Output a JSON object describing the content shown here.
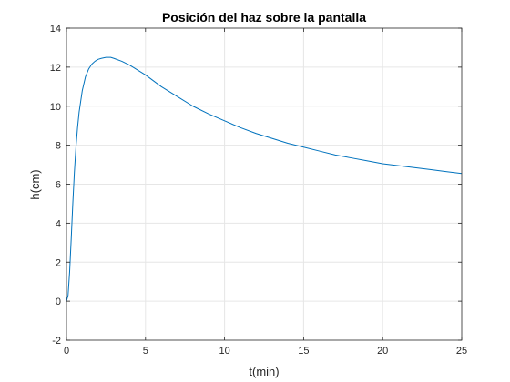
{
  "chart_data": {
    "type": "line",
    "title": "Posición del haz sobre la pantalla",
    "xlabel": "t(min)",
    "ylabel": "h(cm)",
    "xlim": [
      0,
      25
    ],
    "ylim": [
      -2,
      14
    ],
    "xticks": [
      0,
      5,
      10,
      15,
      20,
      25
    ],
    "yticks": [
      -2,
      0,
      2,
      4,
      6,
      8,
      10,
      12,
      14
    ],
    "grid": true,
    "series_color": "#0072BD",
    "series": [
      {
        "x": [
          0,
          0.1,
          0.2,
          0.3,
          0.4,
          0.5,
          0.6,
          0.7,
          0.8,
          1.0,
          1.2,
          1.4,
          1.6,
          1.8,
          2.0,
          2.2,
          2.5,
          2.8,
          3.0,
          3.5,
          4.0,
          5.0,
          6.0,
          7.0,
          8.0,
          9.0,
          10.0,
          11.0,
          12.0,
          13.0,
          14.0,
          15.0,
          16.0,
          17.0,
          18.0,
          19.0,
          20.0,
          21.0,
          22.0,
          23.0,
          24.0,
          25.0
        ],
        "values": [
          0,
          0.3,
          1.5,
          3.2,
          5.0,
          6.6,
          7.9,
          8.9,
          9.7,
          10.8,
          11.5,
          11.9,
          12.15,
          12.3,
          12.4,
          12.45,
          12.5,
          12.5,
          12.45,
          12.3,
          12.1,
          11.6,
          11.0,
          10.5,
          10.0,
          9.6,
          9.25,
          8.9,
          8.6,
          8.35,
          8.1,
          7.9,
          7.7,
          7.5,
          7.35,
          7.2,
          7.05,
          6.95,
          6.85,
          6.75,
          6.65,
          6.55
        ]
      }
    ]
  }
}
